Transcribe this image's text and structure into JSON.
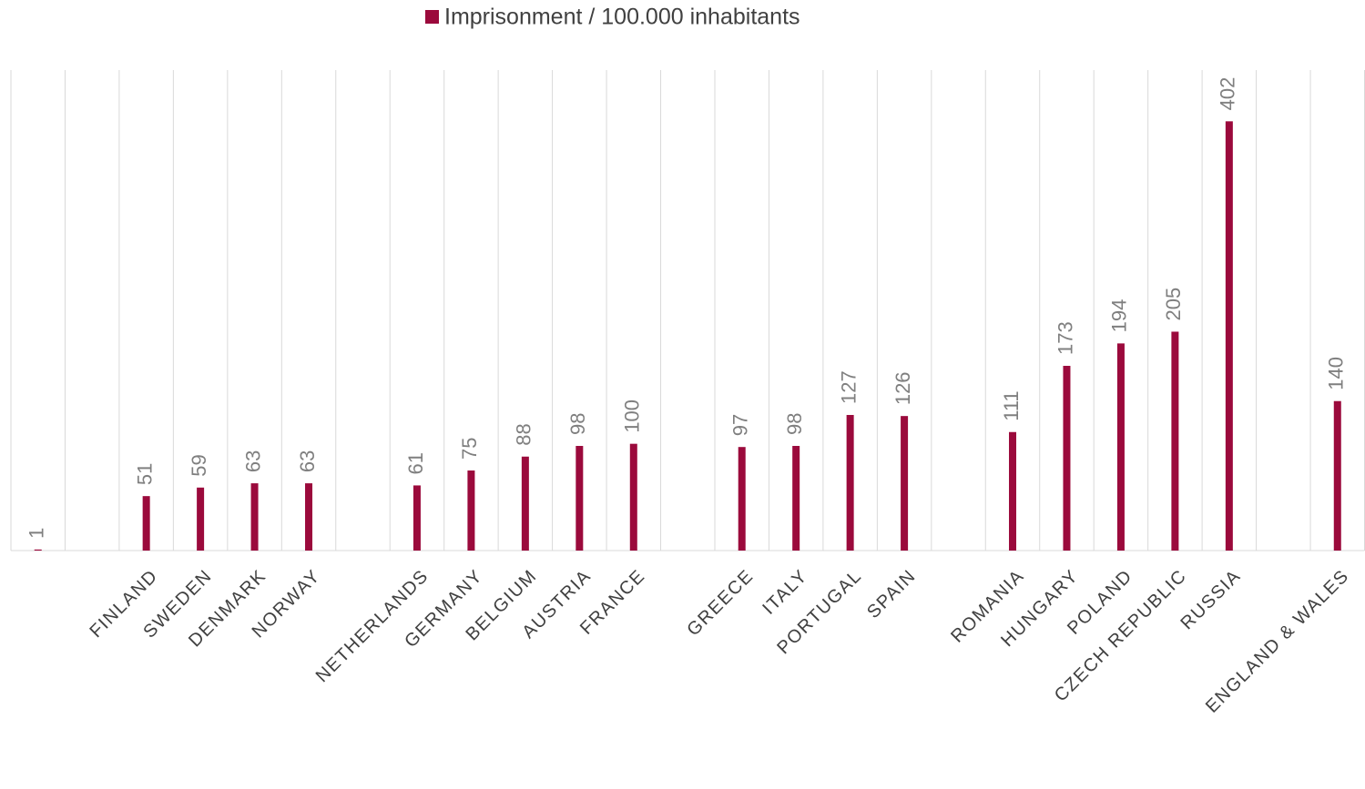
{
  "chart_data": {
    "type": "bar",
    "legend": "Imprisonment / 100.000 inhabitants",
    "color": "#9b0a3c",
    "categories": [
      null,
      null,
      "FINLAND",
      "SWEDEN",
      "DENMARK",
      "NORWAY",
      null,
      "NETHERLANDS",
      "GERMANY",
      "BELGIUM",
      "AUSTRIA",
      "FRANCE",
      null,
      "GREECE",
      "ITALY",
      "PORTUGAL",
      "SPAIN",
      null,
      "ROMANIA",
      "HUNGARY",
      "POLAND",
      "CZECH REPUBLIC",
      "RUSSIA",
      null,
      "ENGLAND & WALES"
    ],
    "values": [
      1,
      null,
      51,
      59,
      63,
      63,
      null,
      61,
      75,
      88,
      98,
      100,
      null,
      97,
      98,
      127,
      126,
      null,
      111,
      173,
      194,
      205,
      402,
      null,
      140
    ],
    "ylim": [
      0,
      450
    ]
  }
}
